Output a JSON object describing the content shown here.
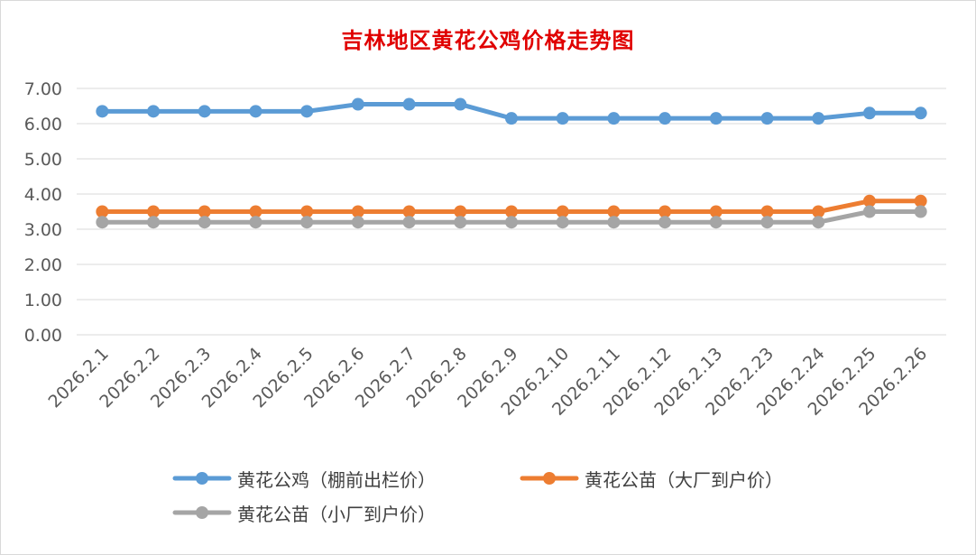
{
  "chart_data": {
    "type": "line",
    "title": "吉林地区黄花公鸡价格走势图",
    "xlabel": "",
    "ylabel": "",
    "categories": [
      "2026.2.1",
      "2026.2.2",
      "2026.2.3",
      "2026.2.4",
      "2026.2.5",
      "2026.2.6",
      "2026.2.7",
      "2026.2.8",
      "2026.2.9",
      "2026.2.10",
      "2026.2.11",
      "2026.2.12",
      "2026.2.13",
      "2026.2.23",
      "2026.2.24",
      "2026.2.25",
      "2026.2.26"
    ],
    "ylim": [
      0,
      7
    ],
    "yticks": [
      "0.00",
      "1.00",
      "2.00",
      "3.00",
      "4.00",
      "5.00",
      "6.00",
      "7.00"
    ],
    "grid": true,
    "legend_position": "bottom",
    "series": [
      {
        "name": "黄花公鸡（棚前出栏价）",
        "color": "#5b9bd5",
        "values": [
          6.35,
          6.35,
          6.35,
          6.35,
          6.35,
          6.55,
          6.55,
          6.55,
          6.15,
          6.15,
          6.15,
          6.15,
          6.15,
          6.15,
          6.15,
          6.3,
          6.3
        ]
      },
      {
        "name": "黄花公苗（大厂到户价）",
        "color": "#ed7d31",
        "values": [
          3.5,
          3.5,
          3.5,
          3.5,
          3.5,
          3.5,
          3.5,
          3.5,
          3.5,
          3.5,
          3.5,
          3.5,
          3.5,
          3.5,
          3.5,
          3.8,
          3.8
        ]
      },
      {
        "name": "黄花公苗（小厂到户价）",
        "color": "#a5a5a5",
        "values": [
          3.2,
          3.2,
          3.2,
          3.2,
          3.2,
          3.2,
          3.2,
          3.2,
          3.2,
          3.2,
          3.2,
          3.2,
          3.2,
          3.2,
          3.2,
          3.5,
          3.5
        ]
      }
    ]
  }
}
